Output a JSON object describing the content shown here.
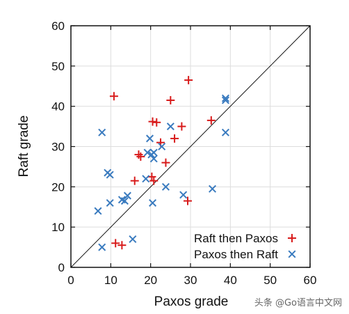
{
  "chart_data": {
    "type": "scatter",
    "xlabel": "Paxos grade",
    "ylabel": "Raft grade",
    "xlim": [
      0,
      60
    ],
    "ylim": [
      0,
      60
    ],
    "xticks": [
      0,
      10,
      20,
      30,
      40,
      50,
      60
    ],
    "yticks": [
      0,
      10,
      20,
      30,
      40,
      50,
      60
    ],
    "grid": true,
    "legend_position": "bottom-right",
    "reference_line": {
      "from": [
        0,
        0
      ],
      "to": [
        60,
        60
      ],
      "color": "#111111"
    },
    "series": [
      {
        "name": "Raft then Paxos",
        "marker": "plus",
        "color": "#d81b1b",
        "points": [
          [
            10.8,
            42.5
          ],
          [
            17.0,
            28.0
          ],
          [
            17.5,
            27.5
          ],
          [
            20.5,
            36.2
          ],
          [
            21.5,
            36.0
          ],
          [
            22.5,
            31.0
          ],
          [
            23.8,
            26.0
          ],
          [
            25.0,
            41.5
          ],
          [
            26.0,
            32.0
          ],
          [
            27.8,
            35.0
          ],
          [
            29.5,
            46.5
          ],
          [
            29.3,
            16.5
          ],
          [
            35.2,
            36.5
          ],
          [
            20.3,
            22.5
          ],
          [
            20.8,
            21.5
          ],
          [
            16.0,
            21.5
          ],
          [
            11.2,
            6.0
          ],
          [
            12.8,
            5.5
          ]
        ]
      },
      {
        "name": "Paxos then Raft",
        "marker": "x",
        "color": "#3a7bbf",
        "points": [
          [
            7.8,
            33.5
          ],
          [
            9.2,
            23.5
          ],
          [
            9.8,
            23.0
          ],
          [
            6.8,
            14.0
          ],
          [
            9.8,
            16.0
          ],
          [
            12.8,
            16.8
          ],
          [
            13.5,
            16.5
          ],
          [
            14.2,
            17.8
          ],
          [
            15.5,
            7.0
          ],
          [
            7.8,
            5.0
          ],
          [
            18.8,
            22.0
          ],
          [
            19.2,
            28.5
          ],
          [
            19.8,
            32.0
          ],
          [
            20.2,
            28.0
          ],
          [
            20.8,
            27.0
          ],
          [
            20.8,
            28.5
          ],
          [
            22.8,
            30.0
          ],
          [
            23.8,
            20.0
          ],
          [
            25.0,
            35.0
          ],
          [
            20.5,
            16.0
          ],
          [
            28.2,
            18.0
          ],
          [
            35.5,
            19.5
          ],
          [
            38.8,
            42.0
          ],
          [
            38.8,
            41.5
          ],
          [
            38.8,
            33.5
          ]
        ]
      }
    ]
  },
  "watermark": "头条 @Go语言中文网"
}
